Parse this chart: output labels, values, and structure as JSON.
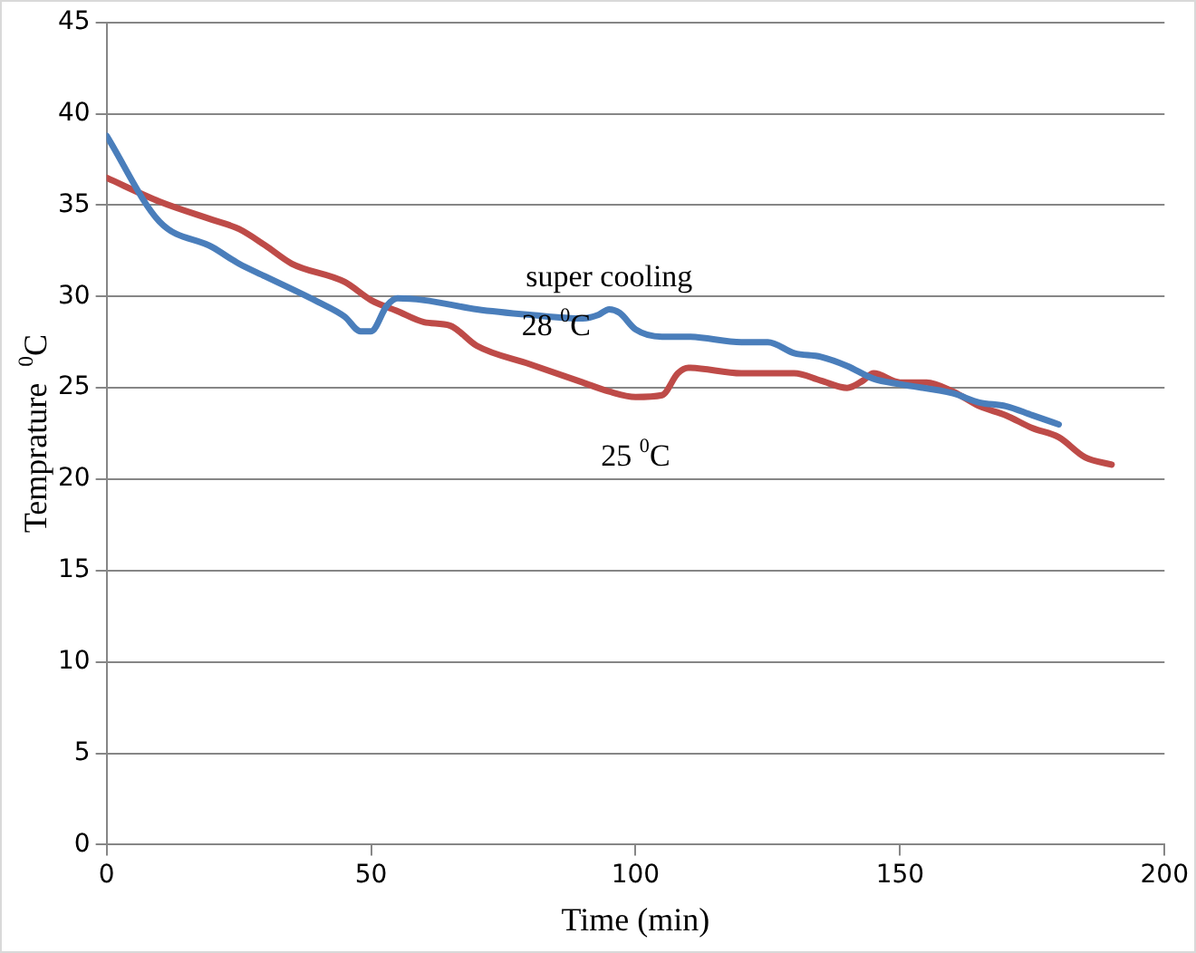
{
  "chart_data": {
    "type": "line",
    "xlabel": "Time (min)",
    "ylabel": "Temprature  $^{0}$C",
    "xlim": [
      0,
      200
    ],
    "xticks": [
      0,
      50,
      100,
      150,
      200
    ],
    "ylim": [
      0,
      45
    ],
    "yticks": [
      0,
      5,
      10,
      15,
      20,
      25,
      30,
      35,
      40,
      45
    ],
    "grid": "y",
    "legend": false,
    "marker": "none",
    "line_style": "solid",
    "series": [
      {
        "color": "#4a7ebb",
        "x": [
          0,
          10,
          20,
          25,
          30,
          40,
          45,
          48,
          50,
          53,
          55,
          60,
          70,
          80,
          90,
          93,
          95,
          97,
          100,
          105,
          110,
          120,
          125,
          130,
          135,
          140,
          145,
          150,
          160,
          165,
          170,
          175,
          180
        ],
        "values": [
          38.8,
          34.1,
          32.7,
          31.8,
          31.1,
          29.7,
          28.9,
          28.1,
          28.1,
          29.5,
          29.9,
          29.8,
          29.3,
          29.0,
          28.8,
          29.0,
          29.3,
          29.1,
          28.2,
          27.8,
          27.8,
          27.5,
          27.5,
          26.9,
          26.7,
          26.2,
          25.5,
          25.2,
          24.7,
          24.2,
          24.0,
          23.5,
          23.0
        ]
      },
      {
        "color": "#be4b48",
        "x": [
          0,
          10,
          20,
          25,
          30,
          35,
          45,
          50,
          55,
          60,
          65,
          70,
          80,
          90,
          95,
          100,
          105,
          108,
          110,
          120,
          130,
          135,
          140,
          143,
          145,
          150,
          155,
          160,
          165,
          170,
          175,
          180,
          185,
          190
        ],
        "values": [
          36.5,
          35.2,
          34.2,
          33.7,
          32.8,
          31.8,
          30.8,
          29.8,
          29.2,
          28.6,
          28.4,
          27.3,
          26.3,
          25.3,
          24.8,
          24.5,
          24.6,
          25.8,
          26.1,
          25.8,
          25.8,
          25.4,
          25.0,
          25.4,
          25.8,
          25.3,
          25.3,
          24.8,
          24.0,
          23.5,
          22.8,
          22.3,
          21.2,
          20.8
        ]
      }
    ],
    "annotations": [
      "super cooling",
      "28 $^{0}$C",
      "25 $^{0}$C"
    ]
  }
}
